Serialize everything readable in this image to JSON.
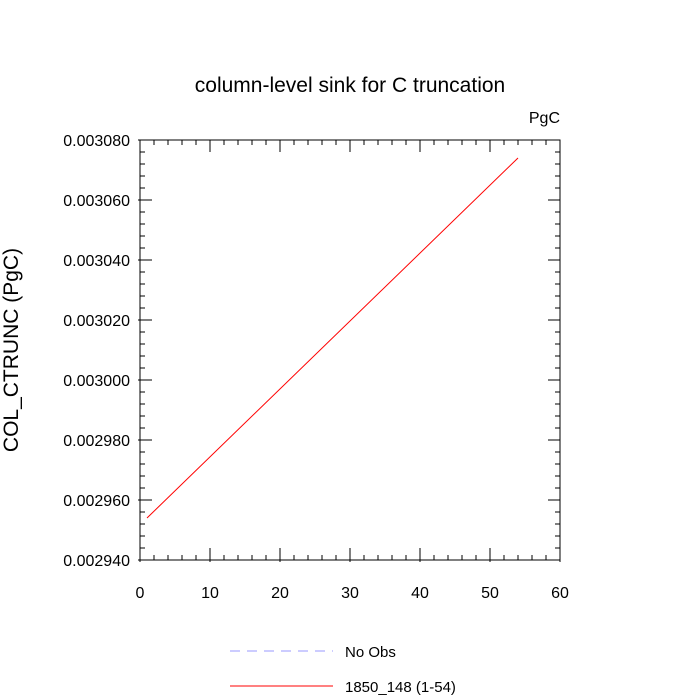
{
  "chart_data": {
    "type": "line",
    "title": "column-level sink for C truncation",
    "units_label": "PgC",
    "xlabel": "",
    "ylabel": "COL_CTRUNC  (PgC)",
    "xlim": [
      0,
      60
    ],
    "ylim": [
      0.00294,
      0.00308
    ],
    "x_ticks": [
      0,
      10,
      20,
      30,
      40,
      50,
      60
    ],
    "x_tick_labels": [
      "0",
      "10",
      "20",
      "30",
      "40",
      "50",
      "60"
    ],
    "y_ticks": [
      0.00294,
      0.00296,
      0.00298,
      0.003,
      0.00302,
      0.00304,
      0.00306,
      0.00308
    ],
    "y_tick_labels": [
      "0.002940",
      "0.002960",
      "0.002980",
      "0.003000",
      "0.003020",
      "0.003040",
      "0.003060",
      "0.003080"
    ],
    "grid": false,
    "legend_position": "bottom-center",
    "series": [
      {
        "name": "1850_148 (1-54)",
        "color": "#ff0000",
        "style": "solid",
        "x": [
          1,
          54
        ],
        "y": [
          0.002954,
          0.003074
        ]
      },
      {
        "name": "No Obs",
        "color": "#9999ff",
        "style": "dashed",
        "x": [],
        "y": []
      }
    ]
  }
}
